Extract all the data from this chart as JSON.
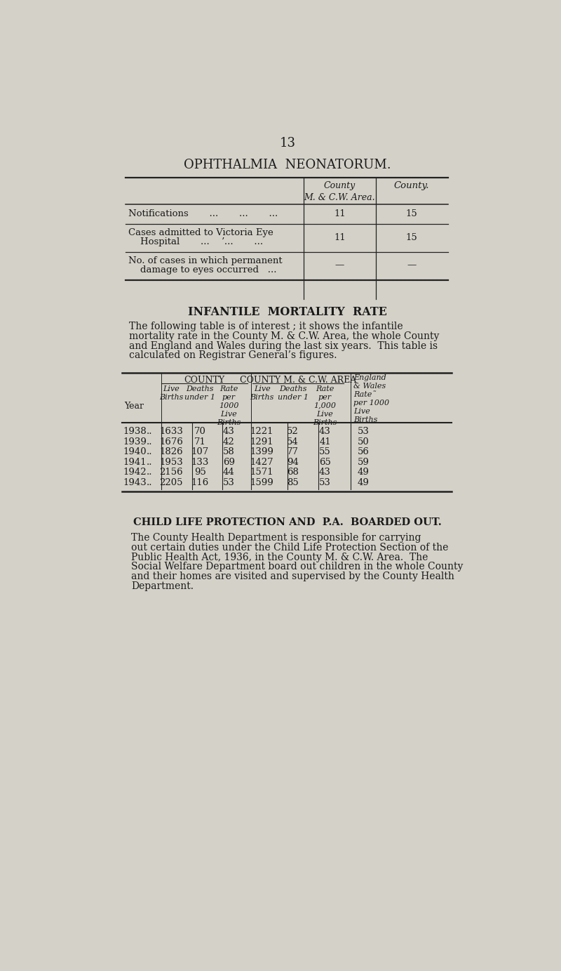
{
  "page_number": "13",
  "bg_color": "#d4d1c8",
  "text_color": "#1a1a1a",
  "section1_title": "OPHTHALMIA  NEONATORUM.",
  "section2_title": "INFANTILE  MORTALITY  RATE",
  "section2_para_lines": [
    "The following table is of interest ; it shows the infantile",
    "mortality rate in the County M. & C.W. Area, the whole County",
    "and England and Wales during the last six years.  This table is",
    "calculated on Registrar General’s figures."
  ],
  "table2_rows": [
    [
      "1938",
      "..",
      "1633",
      "70",
      "43",
      "1221",
      "52",
      "43",
      "53"
    ],
    [
      "1939",
      "..",
      "1676",
      "71",
      "42",
      "1291",
      "54",
      "41",
      "50"
    ],
    [
      "1940",
      "..",
      "1826",
      "107",
      "58",
      "1399",
      "77",
      "55",
      "56"
    ],
    [
      "1941",
      "..",
      "1953",
      "133",
      "69",
      "1427",
      "94",
      "65",
      "59"
    ],
    [
      "1942",
      "..",
      "2156",
      "95",
      "44",
      "1571",
      "68",
      "43",
      "49"
    ],
    [
      "1943",
      "..",
      "2205",
      "116",
      "53",
      "1599",
      "85",
      "53",
      "49"
    ]
  ],
  "section3_title": "CHILD LIFE PROTECTION AND  P.A.  BOARDED OUT.",
  "section3_para_lines": [
    "The County Health Department is responsible for carrying",
    "out certain duties under the Child Life Protection Section of the",
    "Public Health Act, 1936, in the County M. & C.W. Area.  The",
    "Social Welfare Department board out children in the whole County",
    "and their homes are visited and supervised by the County Health",
    "Department."
  ]
}
